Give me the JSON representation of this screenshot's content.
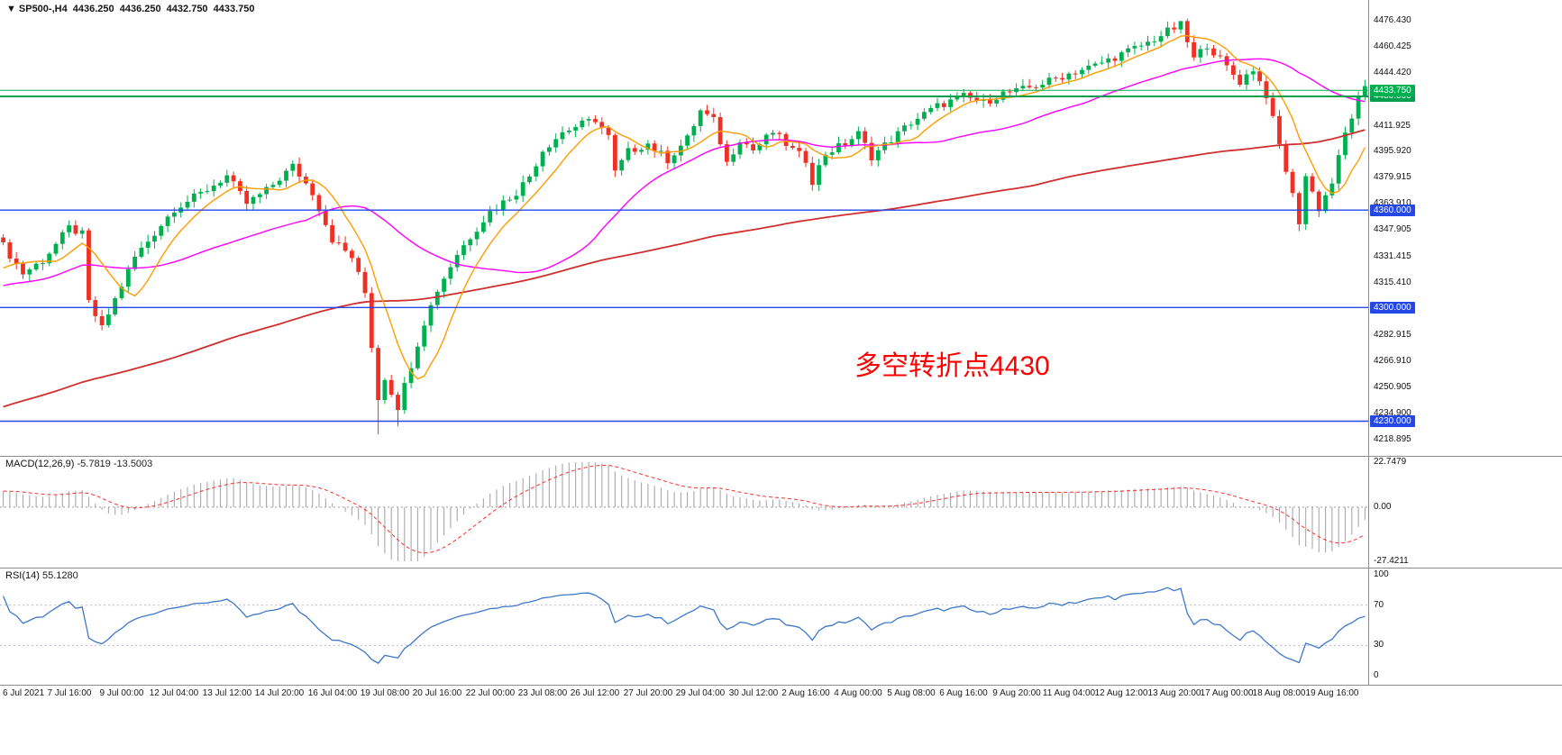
{
  "title": {
    "marker": "▼",
    "symbol": "SP500-,H4",
    "open": "4436.250",
    "high": "4436.250",
    "low": "4432.750",
    "close": "4433.750"
  },
  "annotation": {
    "text": "多空转折点4430",
    "color": "#ff0000"
  },
  "colors": {
    "candle_up": "#00b050",
    "candle_down": "#ee3124",
    "ma_fast": "#ff9c00",
    "ma_mid": "#ff00ff",
    "ma_slow": "#d12f2f",
    "hline_blue": "#2447e8",
    "hline_green": "#009f4d",
    "price_line_green": "#00b050",
    "macd_hist": "#a8a8a8",
    "macd_signal": "#ff2d2d",
    "rsi_line": "#3e78c9",
    "level_dotted": "#b9b9d0",
    "separator": "#8c8c8c",
    "axis_text": "#111111"
  },
  "price_axis": {
    "labels": [
      {
        "text": "4476.430",
        "price": 4476.43
      },
      {
        "text": "4460.425",
        "price": 4460.425
      },
      {
        "text": "4444.420",
        "price": 4444.42
      },
      {
        "text": "4428.415",
        "price": 4428.415
      },
      {
        "text": "4411.925",
        "price": 4411.925
      },
      {
        "text": "4395.920",
        "price": 4395.92
      },
      {
        "text": "4379.915",
        "price": 4379.915
      },
      {
        "text": "4363.910",
        "price": 4363.91
      },
      {
        "text": "4347.905",
        "price": 4347.905
      },
      {
        "text": "4331.415",
        "price": 4331.415
      },
      {
        "text": "4315.410",
        "price": 4315.41
      },
      {
        "text": "4299.405",
        "price": 4299.405
      },
      {
        "text": "4282.915",
        "price": 4282.915
      },
      {
        "text": "4266.910",
        "price": 4266.91
      },
      {
        "text": "4250.905",
        "price": 4250.905
      },
      {
        "text": "4234.900",
        "price": 4234.9
      },
      {
        "text": "4218.895",
        "price": 4218.895
      }
    ]
  },
  "price_tags": [
    {
      "text": "4430.000",
      "price": 4430.0,
      "color": "#009f4d"
    },
    {
      "text": "4433.750",
      "price": 4433.75,
      "color": "#00b050"
    },
    {
      "text": "4360.000",
      "price": 4360.0,
      "color": "#2447e8"
    },
    {
      "text": "4300.000",
      "price": 4300.0,
      "color": "#2447e8"
    },
    {
      "text": "4230.000",
      "price": 4230.0,
      "color": "#2447e8"
    }
  ],
  "hlines": [
    {
      "price": 4433.75,
      "color": "#00b050",
      "width": 1
    },
    {
      "price": 4430.0,
      "color": "#009f4d",
      "width": 2
    },
    {
      "price": 4360.0,
      "color": "#2447e8",
      "width": 1.4
    },
    {
      "price": 4300.0,
      "color": "#2447e8",
      "width": 1.4
    },
    {
      "price": 4230.0,
      "color": "#2447e8",
      "width": 1.4
    }
  ],
  "macd_panel": {
    "label": "MACD(12,26,9)",
    "main_value": "-5.7819",
    "signal_value": "-13.5003",
    "axis": [
      {
        "text": "22.7479",
        "v": 22.7479
      },
      {
        "text": "0.00",
        "v": 0
      },
      {
        "text": "-27.4211",
        "v": -27.4211
      }
    ]
  },
  "rsi_panel": {
    "label": "RSI(14)",
    "value": "55.1280",
    "axis": [
      {
        "text": "100",
        "v": 100
      },
      {
        "text": "70",
        "v": 70
      },
      {
        "text": "30",
        "v": 30
      },
      {
        "text": "0",
        "v": 0
      }
    ],
    "levels": [
      70,
      30
    ]
  },
  "chart_data": {
    "type": "candlestick",
    "symbol": "SP500-",
    "timeframe": "H4",
    "ylim": [
      4212,
      4486
    ],
    "num_candles": 208,
    "close_waypoints": [
      [
        0,
        4338
      ],
      [
        3,
        4321
      ],
      [
        6,
        4329
      ],
      [
        10,
        4349
      ],
      [
        12,
        4345
      ],
      [
        13,
        4303
      ],
      [
        15,
        4287
      ],
      [
        17,
        4305
      ],
      [
        20,
        4331
      ],
      [
        23,
        4346
      ],
      [
        26,
        4361
      ],
      [
        30,
        4370
      ],
      [
        34,
        4381
      ],
      [
        37,
        4364
      ],
      [
        40,
        4372
      ],
      [
        44,
        4387
      ],
      [
        47,
        4371
      ],
      [
        50,
        4342
      ],
      [
        53,
        4331
      ],
      [
        55,
        4309
      ],
      [
        57,
        4244
      ],
      [
        58,
        4257
      ],
      [
        60,
        4239
      ],
      [
        62,
        4265
      ],
      [
        64,
        4291
      ],
      [
        66,
        4311
      ],
      [
        69,
        4333
      ],
      [
        72,
        4349
      ],
      [
        74,
        4359
      ],
      [
        78,
        4371
      ],
      [
        80,
        4381
      ],
      [
        82,
        4397
      ],
      [
        85,
        4408
      ],
      [
        88,
        4413
      ],
      [
        90,
        4416
      ],
      [
        92,
        4405
      ],
      [
        93,
        4383
      ],
      [
        95,
        4396
      ],
      [
        98,
        4401
      ],
      [
        101,
        4391
      ],
      [
        104,
        4404
      ],
      [
        106,
        4421
      ],
      [
        108,
        4415
      ],
      [
        110,
        4389
      ],
      [
        112,
        4404
      ],
      [
        114,
        4397
      ],
      [
        117,
        4408
      ],
      [
        120,
        4397
      ],
      [
        122,
        4391
      ],
      [
        123,
        4378
      ],
      [
        125,
        4395
      ],
      [
        128,
        4401
      ],
      [
        130,
        4407
      ],
      [
        132,
        4393
      ],
      [
        134,
        4400
      ],
      [
        138,
        4414
      ],
      [
        142,
        4424
      ],
      [
        146,
        4430
      ],
      [
        149,
        4426
      ],
      [
        152,
        4432
      ],
      [
        154,
        4433
      ],
      [
        158,
        4438
      ],
      [
        162,
        4444
      ],
      [
        166,
        4449
      ],
      [
        170,
        4456
      ],
      [
        174,
        4463
      ],
      [
        177,
        4470
      ],
      [
        179,
        4474
      ],
      [
        181,
        4453
      ],
      [
        183,
        4462
      ],
      [
        186,
        4448
      ],
      [
        188,
        4439
      ],
      [
        190,
        4447
      ],
      [
        192,
        4431
      ],
      [
        194,
        4400
      ],
      [
        196,
        4369
      ],
      [
        197,
        4353
      ],
      [
        198,
        4381
      ],
      [
        200,
        4361
      ],
      [
        202,
        4377
      ],
      [
        204,
        4407
      ],
      [
        206,
        4428
      ],
      [
        207,
        4434
      ]
    ],
    "wick_overrides": [
      [
        57,
        "low",
        4222
      ],
      [
        60,
        "low",
        4227
      ],
      [
        179,
        "high",
        4476.4
      ],
      [
        197,
        "low",
        4347
      ]
    ],
    "history": {
      "len": 144,
      "start": 4140,
      "end": 4335
    },
    "ma": {
      "fast_period": 8,
      "mid_period": 34,
      "slow_period": 144
    },
    "macd": {
      "fast": 12,
      "slow": 26,
      "signal": 9,
      "ylim": [
        -27.4211,
        22.7479
      ]
    },
    "rsi": {
      "period": 14,
      "levels": [
        70,
        30
      ],
      "ylim": [
        0,
        100
      ]
    },
    "tick_indices": [
      0,
      10,
      18,
      26,
      34,
      42,
      50,
      58,
      66,
      74,
      82,
      90,
      98,
      106,
      114,
      122,
      130,
      138,
      146,
      154,
      162,
      170,
      178,
      186,
      194,
      202
    ],
    "time_labels": [
      "6 Jul 2021",
      "7 Jul 16:00",
      "9 Jul 00:00",
      "12 Jul 04:00",
      "13 Jul 12:00",
      "14 Jul 20:00",
      "16 Jul 04:00",
      "19 Jul 08:00",
      "20 Jul 16:00",
      "22 Jul 00:00",
      "23 Jul 08:00",
      "26 Jul 12:00",
      "27 Jul 20:00",
      "29 Jul 04:00",
      "30 Jul 12:00",
      "2 Aug 16:00",
      "4 Aug 00:00",
      "5 Aug 08:00",
      "6 Aug 16:00",
      "9 Aug 20:00",
      "11 Aug 04:00",
      "12 Aug 12:00",
      "13 Aug 20:00",
      "17 Aug 00:00",
      "18 Aug 08:00",
      "19 Aug 16:00"
    ]
  }
}
